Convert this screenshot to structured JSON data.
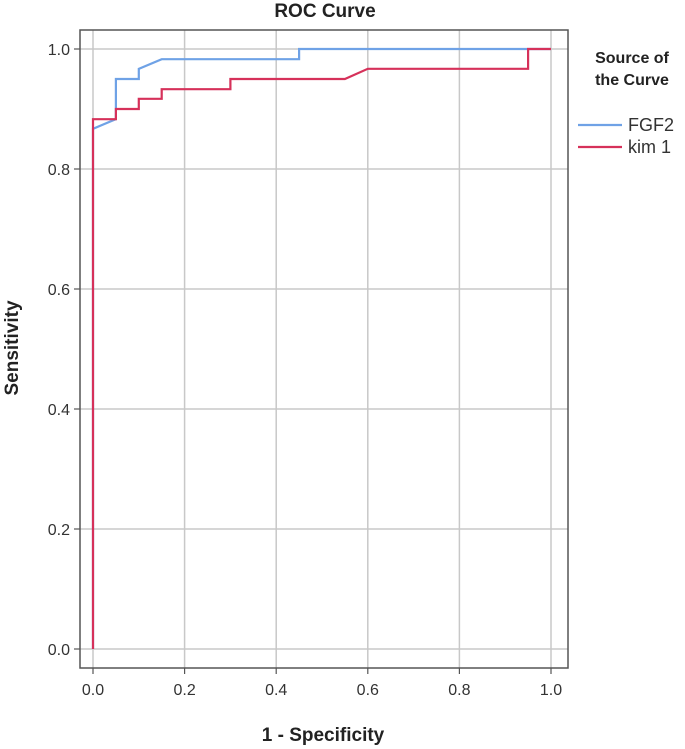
{
  "chart_data": {
    "type": "line",
    "title": "ROC Curve",
    "xlabel": "1 - Specificity",
    "ylabel": "Sensitivity",
    "xlim": [
      0,
      1
    ],
    "ylim": [
      0,
      1
    ],
    "x_ticks": [
      "0.0",
      "0.2",
      "0.4",
      "0.6",
      "0.8",
      "1.0"
    ],
    "y_ticks": [
      "0.0",
      "0.2",
      "0.4",
      "0.6",
      "0.8",
      "1.0"
    ],
    "grid": true,
    "legend": {
      "title_lines": [
        "Source of",
        "the Curve"
      ],
      "placement": "right"
    },
    "series": [
      {
        "name": "FGF2",
        "color": "#6fa2e6",
        "points": [
          [
            0,
            0
          ],
          [
            0,
            0.867
          ],
          [
            0.05,
            0.883
          ],
          [
            0.05,
            0.95
          ],
          [
            0.1,
            0.95
          ],
          [
            0.1,
            0.967
          ],
          [
            0.15,
            0.983
          ],
          [
            0.45,
            0.983
          ],
          [
            0.45,
            1.0
          ],
          [
            1.0,
            1.0
          ]
        ]
      },
      {
        "name": "kim 1",
        "color": "#d6315a",
        "points": [
          [
            0,
            0
          ],
          [
            0,
            0.883
          ],
          [
            0.05,
            0.883
          ],
          [
            0.05,
            0.9
          ],
          [
            0.1,
            0.9
          ],
          [
            0.1,
            0.917
          ],
          [
            0.15,
            0.917
          ],
          [
            0.15,
            0.933
          ],
          [
            0.3,
            0.933
          ],
          [
            0.3,
            0.95
          ],
          [
            0.55,
            0.95
          ],
          [
            0.6,
            0.967
          ],
          [
            0.95,
            0.967
          ],
          [
            0.95,
            1.0
          ],
          [
            1.0,
            1.0
          ]
        ]
      }
    ]
  }
}
